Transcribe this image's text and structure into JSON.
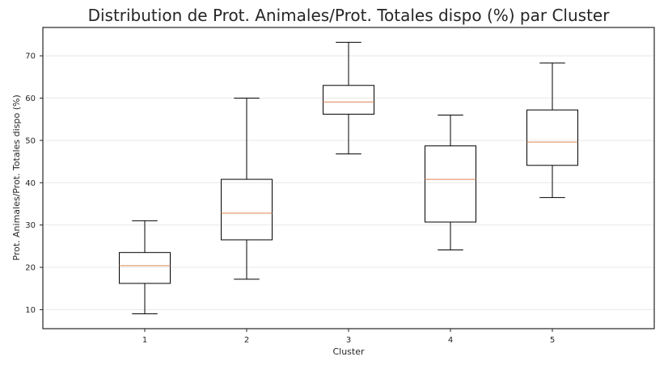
{
  "chart_data": {
    "type": "box",
    "title": "Distribution de Prot. Animales/Prot. Totales dispo (%) par Cluster",
    "xlabel": "Cluster",
    "ylabel": "Prot. Animales/Prot. Totales dispo (%)",
    "categories": [
      "1",
      "2",
      "3",
      "4",
      "5"
    ],
    "ylim": [
      5.5,
      76.7
    ],
    "yticks": [
      "10",
      "20",
      "30",
      "40",
      "50",
      "60",
      "70"
    ],
    "grid": true,
    "boxes": [
      {
        "whisker_low": 9.0,
        "q1": 16.2,
        "median": 20.4,
        "q3": 23.5,
        "whisker_high": 31.0
      },
      {
        "whisker_low": 17.2,
        "q1": 26.5,
        "median": 32.8,
        "q3": 40.8,
        "whisker_high": 60.0
      },
      {
        "whisker_low": 46.8,
        "q1": 56.2,
        "median": 59.1,
        "q3": 63.0,
        "whisker_high": 73.2
      },
      {
        "whisker_low": 24.1,
        "q1": 30.7,
        "median": 40.8,
        "q3": 48.7,
        "whisker_high": 56.0
      },
      {
        "whisker_low": 36.5,
        "q1": 44.1,
        "median": 49.6,
        "q3": 57.2,
        "whisker_high": 68.3
      }
    ],
    "colors": {
      "box": "#000000",
      "median": "#dd8452",
      "grid": "#e8e8e8",
      "frame": "#262626"
    }
  }
}
